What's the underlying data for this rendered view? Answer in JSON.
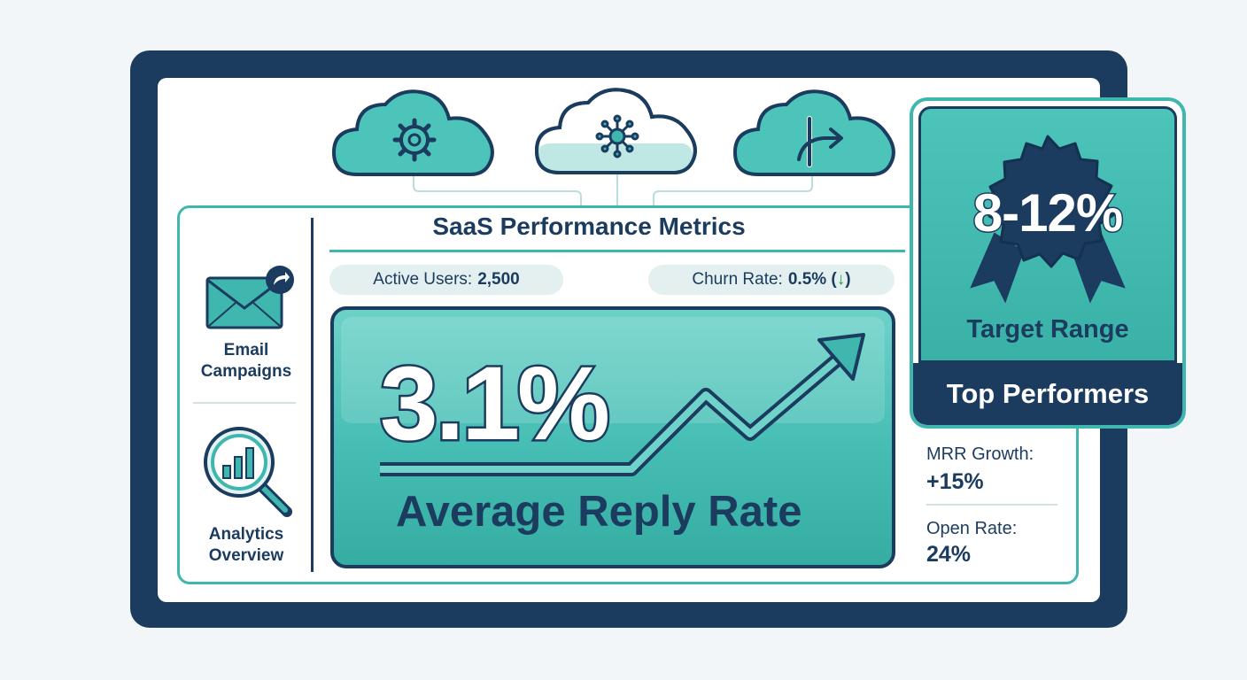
{
  "dashboard": {
    "title": "SaaS Performance Metrics",
    "stats": {
      "active_users_label": "Active Users:",
      "active_users_value": "2,500",
      "churn_label": "Churn Rate:",
      "churn_value": "0.5% (",
      "churn_arrow": "↓",
      "churn_close": ")"
    },
    "hero": {
      "value": "3.1%",
      "label": "Average Reply Rate",
      "trend_icon": "trend-up-arrow-icon"
    },
    "sidebar": {
      "items": [
        {
          "line1": "Email",
          "line2": "Campaigns",
          "icon": "envelope-share-icon"
        },
        {
          "line1": "Analytics",
          "line2": "Overview",
          "icon": "magnifier-chart-icon"
        }
      ]
    },
    "clouds": [
      {
        "icon": "gear-icon"
      },
      {
        "icon": "network-hub-icon"
      },
      {
        "icon": "export-arrow-icon"
      }
    ],
    "badge": {
      "value": "8-12%",
      "subtitle": "Target Range",
      "banner": "Top Performers"
    },
    "side_stats": [
      {
        "label": "MRR Growth:",
        "value": "+15%"
      },
      {
        "label": "Open Rate:",
        "value": "24%"
      }
    ],
    "colors": {
      "navy": "#1b3b5f",
      "teal": "#3fb7ae",
      "teal_light": "#6cd2c9",
      "pill_bg": "#e3f0ef",
      "down_arrow_green": "#21a04c"
    }
  }
}
